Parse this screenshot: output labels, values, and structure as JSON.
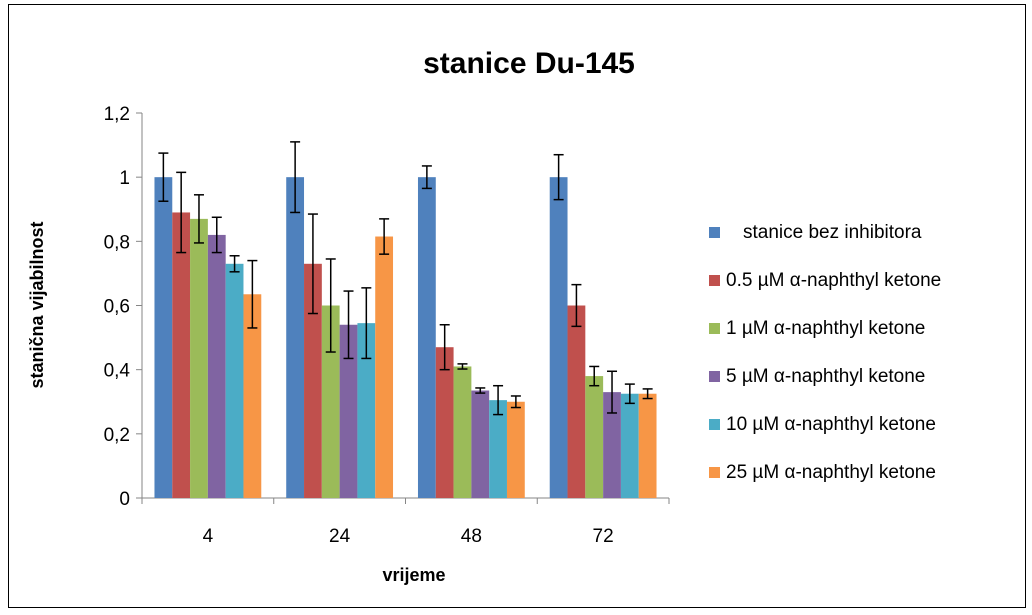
{
  "chart_data": {
    "type": "bar",
    "title": "stanice Du-145",
    "xlabel": "vrijeme",
    "ylabel": "stanična vijabilnost",
    "categories": [
      "4",
      "24",
      "48",
      "72"
    ],
    "yticks": [
      "0",
      "0,2",
      "0,4",
      "0,6",
      "0,8",
      "1",
      "1,2"
    ],
    "ylim": [
      0,
      1.2
    ],
    "grid": false,
    "legend_position": "right",
    "error_bars": true,
    "series": [
      {
        "name": "stanice bez inhibitora",
        "color": "#4F81BD",
        "values": [
          1.0,
          1.0,
          1.0,
          1.0
        ],
        "errors": [
          0.075,
          0.11,
          0.035,
          0.07
        ]
      },
      {
        "name": "0.5 µM α-naphthyl ketone",
        "color": "#C0504D",
        "values": [
          0.89,
          0.73,
          0.47,
          0.6
        ],
        "errors": [
          0.125,
          0.155,
          0.07,
          0.065
        ]
      },
      {
        "name": "1 µM α-naphthyl ketone",
        "color": "#9BBB59",
        "values": [
          0.87,
          0.6,
          0.41,
          0.38
        ],
        "errors": [
          0.075,
          0.145,
          0.008,
          0.03
        ]
      },
      {
        "name": "5 µM α-naphthyl ketone",
        "color": "#8064A2",
        "values": [
          0.82,
          0.54,
          0.335,
          0.33
        ],
        "errors": [
          0.055,
          0.105,
          0.008,
          0.065
        ]
      },
      {
        "name": "10 µM α-naphthyl ketone",
        "color": "#4BACC6",
        "values": [
          0.73,
          0.545,
          0.305,
          0.325
        ],
        "errors": [
          0.025,
          0.11,
          0.045,
          0.03
        ]
      },
      {
        "name": "25 µM α-naphthyl ketone",
        "color": "#F79646",
        "values": [
          0.635,
          0.815,
          0.3,
          0.325
        ],
        "errors": [
          0.105,
          0.055,
          0.018,
          0.015
        ]
      }
    ]
  }
}
